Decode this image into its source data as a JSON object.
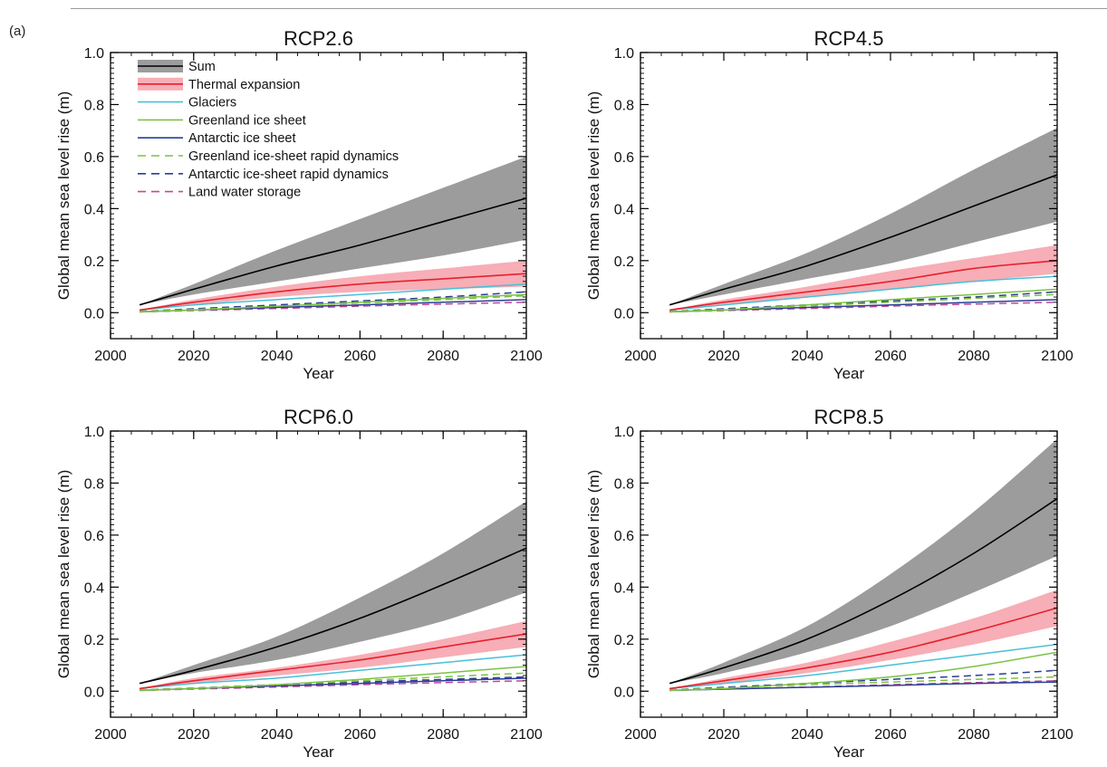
{
  "figure_label": "(a)",
  "colors": {
    "sum_band": "#9b9c9b",
    "sum_line": "#000000",
    "thermal_band": "#f7aeb6",
    "thermal_line": "#e8202c",
    "glaciers": "#48c0d8",
    "greenland": "#7cc242",
    "antarctic": "#2b3d96",
    "greenland_rapid": "#7cc242",
    "antarctic_rapid": "#2b3d96",
    "land_water": "#c0489a"
  },
  "legend": {
    "placement": "top-left of first panel",
    "entries": [
      {
        "label": "Sum",
        "key": "sum",
        "style": "band"
      },
      {
        "label": "Thermal expansion",
        "key": "thermal",
        "style": "band"
      },
      {
        "label": "Glaciers",
        "key": "glaciers",
        "style": "solid"
      },
      {
        "label": "Greenland ice sheet",
        "key": "greenland",
        "style": "solid"
      },
      {
        "label": "Antarctic ice sheet",
        "key": "antarctic",
        "style": "solid"
      },
      {
        "label": "Greenland ice-sheet rapid dynamics",
        "key": "greenland_rapid",
        "style": "dashed"
      },
      {
        "label": "Antarctic ice-sheet rapid dynamics",
        "key": "antarctic_rapid",
        "style": "dashed"
      },
      {
        "label": "Land water storage",
        "key": "land_water",
        "style": "dashed"
      }
    ]
  },
  "chart_data": [
    {
      "type": "line",
      "title": "RCP2.6",
      "xlabel": "Year",
      "ylabel": "Global mean sea level rise (m)",
      "xlim": [
        2000,
        2100
      ],
      "ylim": [
        -0.1,
        1.0
      ],
      "xticks": [
        "2000",
        "2020",
        "2040",
        "2060",
        "2080",
        "2100"
      ],
      "yticks": [
        "0.0",
        "0.2",
        "0.4",
        "0.6",
        "0.8",
        "1.0"
      ],
      "x": [
        2007,
        2020,
        2040,
        2060,
        2080,
        2100
      ],
      "series": [
        {
          "key": "sum",
          "name": "Sum",
          "values": [
            0.03,
            0.09,
            0.18,
            0.26,
            0.35,
            0.44
          ],
          "lower": [
            0.03,
            0.07,
            0.12,
            0.17,
            0.22,
            0.28
          ],
          "upper": [
            0.03,
            0.11,
            0.24,
            0.36,
            0.48,
            0.6
          ]
        },
        {
          "key": "thermal",
          "name": "Thermal expansion",
          "values": [
            0.01,
            0.04,
            0.08,
            0.11,
            0.13,
            0.15
          ],
          "lower": [
            0.01,
            0.03,
            0.06,
            0.08,
            0.09,
            0.1
          ],
          "upper": [
            0.01,
            0.05,
            0.1,
            0.14,
            0.17,
            0.2
          ]
        },
        {
          "key": "glaciers",
          "name": "Glaciers",
          "values": [
            0.01,
            0.03,
            0.05,
            0.07,
            0.09,
            0.11
          ]
        },
        {
          "key": "greenland",
          "name": "Greenland ice sheet",
          "values": [
            0.003,
            0.01,
            0.025,
            0.04,
            0.055,
            0.07
          ]
        },
        {
          "key": "antarctic",
          "name": "Antarctic ice sheet",
          "values": [
            0.003,
            0.01,
            0.02,
            0.03,
            0.04,
            0.05
          ]
        },
        {
          "key": "greenland_rapid",
          "name": "Greenland ice-sheet rapid dynamics",
          "values": [
            0.005,
            0.012,
            0.025,
            0.037,
            0.05,
            0.065
          ]
        },
        {
          "key": "antarctic_rapid",
          "name": "Antarctic ice-sheet rapid dynamics",
          "values": [
            0.005,
            0.015,
            0.03,
            0.045,
            0.06,
            0.08
          ]
        },
        {
          "key": "land_water",
          "name": "Land water storage",
          "values": [
            0.003,
            0.008,
            0.016,
            0.025,
            0.033,
            0.04
          ]
        }
      ]
    },
    {
      "type": "line",
      "title": "RCP4.5",
      "xlabel": "Year",
      "ylabel": "Global mean sea level rise (m)",
      "xlim": [
        2000,
        2100
      ],
      "ylim": [
        -0.1,
        1.0
      ],
      "xticks": [
        "2000",
        "2020",
        "2040",
        "2060",
        "2080",
        "2100"
      ],
      "yticks": [
        "0.0",
        "0.2",
        "0.4",
        "0.6",
        "0.8",
        "1.0"
      ],
      "x": [
        2007,
        2020,
        2040,
        2060,
        2080,
        2100
      ],
      "series": [
        {
          "key": "sum",
          "name": "Sum",
          "values": [
            0.03,
            0.09,
            0.18,
            0.29,
            0.41,
            0.53
          ],
          "lower": [
            0.03,
            0.07,
            0.13,
            0.19,
            0.27,
            0.35
          ],
          "upper": [
            0.03,
            0.11,
            0.23,
            0.38,
            0.55,
            0.71
          ]
        },
        {
          "key": "thermal",
          "name": "Thermal expansion",
          "values": [
            0.01,
            0.04,
            0.08,
            0.12,
            0.17,
            0.2
          ],
          "lower": [
            0.01,
            0.03,
            0.06,
            0.09,
            0.12,
            0.15
          ],
          "upper": [
            0.01,
            0.05,
            0.1,
            0.16,
            0.21,
            0.26
          ]
        },
        {
          "key": "glaciers",
          "name": "Glaciers",
          "values": [
            0.01,
            0.03,
            0.06,
            0.09,
            0.12,
            0.14
          ]
        },
        {
          "key": "greenland",
          "name": "Greenland ice sheet",
          "values": [
            0.003,
            0.01,
            0.03,
            0.05,
            0.07,
            0.09
          ]
        },
        {
          "key": "antarctic",
          "name": "Antarctic ice sheet",
          "values": [
            0.003,
            0.01,
            0.02,
            0.03,
            0.04,
            0.05
          ]
        },
        {
          "key": "greenland_rapid",
          "name": "Greenland ice-sheet rapid dynamics",
          "values": [
            0.005,
            0.012,
            0.025,
            0.04,
            0.055,
            0.07
          ]
        },
        {
          "key": "antarctic_rapid",
          "name": "Antarctic ice-sheet rapid dynamics",
          "values": [
            0.005,
            0.015,
            0.03,
            0.045,
            0.06,
            0.08
          ]
        },
        {
          "key": "land_water",
          "name": "Land water storage",
          "values": [
            0.003,
            0.008,
            0.016,
            0.025,
            0.033,
            0.04
          ]
        }
      ]
    },
    {
      "type": "line",
      "title": "RCP6.0",
      "xlabel": "Year",
      "ylabel": "Global mean sea level rise (m)",
      "xlim": [
        2000,
        2100
      ],
      "ylim": [
        -0.1,
        1.0
      ],
      "xticks": [
        "2000",
        "2020",
        "2040",
        "2060",
        "2080",
        "2100"
      ],
      "yticks": [
        "0.0",
        "0.2",
        "0.4",
        "0.6",
        "0.8",
        "1.0"
      ],
      "x": [
        2007,
        2020,
        2040,
        2060,
        2080,
        2100
      ],
      "series": [
        {
          "key": "sum",
          "name": "Sum",
          "values": [
            0.03,
            0.08,
            0.17,
            0.28,
            0.41,
            0.55
          ],
          "lower": [
            0.03,
            0.07,
            0.12,
            0.19,
            0.27,
            0.38
          ],
          "upper": [
            0.03,
            0.1,
            0.21,
            0.36,
            0.53,
            0.73
          ]
        },
        {
          "key": "thermal",
          "name": "Thermal expansion",
          "values": [
            0.01,
            0.04,
            0.08,
            0.12,
            0.17,
            0.22
          ],
          "lower": [
            0.01,
            0.03,
            0.06,
            0.09,
            0.13,
            0.17
          ],
          "upper": [
            0.01,
            0.05,
            0.09,
            0.14,
            0.2,
            0.27
          ]
        },
        {
          "key": "glaciers",
          "name": "Glaciers",
          "values": [
            0.01,
            0.03,
            0.05,
            0.08,
            0.11,
            0.14
          ]
        },
        {
          "key": "greenland",
          "name": "Greenland ice sheet",
          "values": [
            0.003,
            0.01,
            0.025,
            0.045,
            0.07,
            0.095
          ]
        },
        {
          "key": "antarctic",
          "name": "Antarctic ice sheet",
          "values": [
            0.003,
            0.01,
            0.02,
            0.03,
            0.04,
            0.05
          ]
        },
        {
          "key": "greenland_rapid",
          "name": "Greenland ice-sheet rapid dynamics",
          "values": [
            0.005,
            0.012,
            0.025,
            0.04,
            0.055,
            0.07
          ]
        },
        {
          "key": "antarctic_rapid",
          "name": "Antarctic ice-sheet rapid dynamics",
          "values": [
            0.005,
            0.012,
            0.025,
            0.035,
            0.045,
            0.055
          ]
        },
        {
          "key": "land_water",
          "name": "Land water storage",
          "values": [
            0.003,
            0.008,
            0.016,
            0.025,
            0.033,
            0.04
          ]
        }
      ]
    },
    {
      "type": "line",
      "title": "RCP8.5",
      "xlabel": "Year",
      "ylabel": "Global mean sea level rise (m)",
      "xlim": [
        2000,
        2100
      ],
      "ylim": [
        -0.1,
        1.0
      ],
      "xticks": [
        "2000",
        "2020",
        "2040",
        "2060",
        "2080",
        "2100"
      ],
      "yticks": [
        "0.0",
        "0.2",
        "0.4",
        "0.6",
        "0.8",
        "1.0"
      ],
      "x": [
        2007,
        2020,
        2040,
        2060,
        2080,
        2100
      ],
      "series": [
        {
          "key": "sum",
          "name": "Sum",
          "values": [
            0.03,
            0.09,
            0.2,
            0.35,
            0.53,
            0.74
          ],
          "lower": [
            0.03,
            0.07,
            0.15,
            0.25,
            0.38,
            0.52
          ],
          "upper": [
            0.03,
            0.11,
            0.25,
            0.45,
            0.69,
            0.97
          ]
        },
        {
          "key": "thermal",
          "name": "Thermal expansion",
          "values": [
            0.01,
            0.04,
            0.09,
            0.15,
            0.23,
            0.32
          ],
          "lower": [
            0.01,
            0.03,
            0.07,
            0.12,
            0.18,
            0.25
          ],
          "upper": [
            0.01,
            0.05,
            0.11,
            0.19,
            0.28,
            0.39
          ]
        },
        {
          "key": "glaciers",
          "name": "Glaciers",
          "values": [
            0.01,
            0.03,
            0.06,
            0.1,
            0.14,
            0.18
          ]
        },
        {
          "key": "greenland",
          "name": "Greenland ice sheet",
          "values": [
            0.003,
            0.01,
            0.03,
            0.055,
            0.095,
            0.15
          ]
        },
        {
          "key": "antarctic",
          "name": "Antarctic ice sheet",
          "values": [
            0.003,
            0.008,
            0.015,
            0.022,
            0.03,
            0.035
          ]
        },
        {
          "key": "greenland_rapid",
          "name": "Greenland ice-sheet rapid dynamics",
          "values": [
            0.005,
            0.012,
            0.025,
            0.035,
            0.045,
            0.055
          ]
        },
        {
          "key": "antarctic_rapid",
          "name": "Antarctic ice-sheet rapid dynamics",
          "values": [
            0.005,
            0.015,
            0.03,
            0.045,
            0.06,
            0.08
          ]
        },
        {
          "key": "land_water",
          "name": "Land water storage",
          "values": [
            0.003,
            0.008,
            0.016,
            0.025,
            0.033,
            0.04
          ]
        }
      ]
    }
  ]
}
